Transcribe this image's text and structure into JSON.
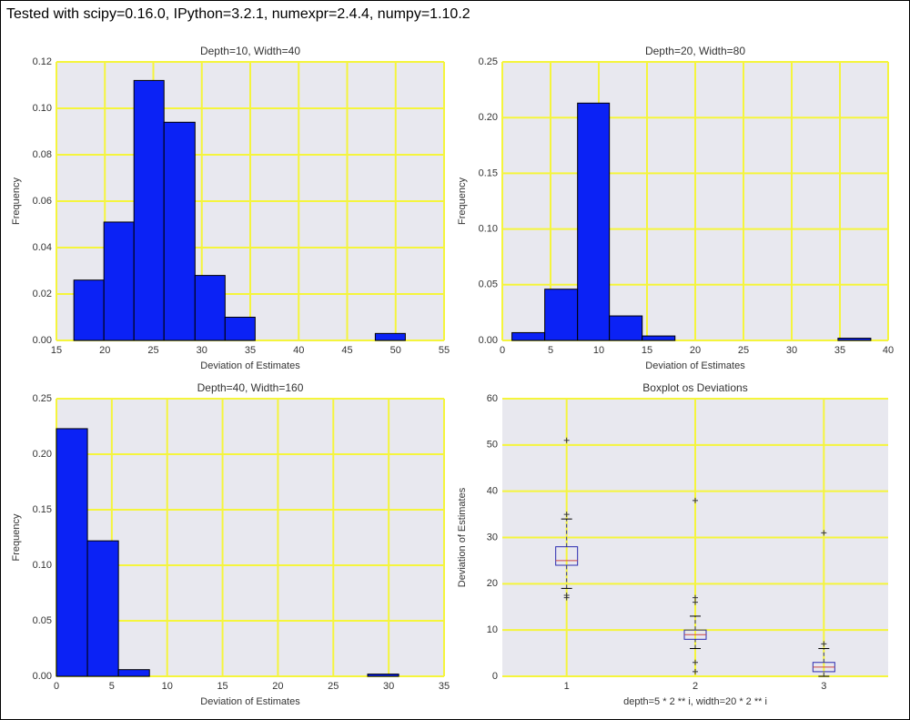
{
  "header": "Tested with scipy=0.16.0, IPython=3.2.1, numexpr=2.4.4, numpy=1.10.2",
  "chart_data": [
    {
      "type": "histogram",
      "title": "Depth=10, Width=40",
      "x_label": "Deviation of Estimates",
      "y_label": "Frequency",
      "bins": [
        16.8,
        19.9,
        23.0,
        26.1,
        29.3,
        32.4,
        35.5,
        38.6,
        41.7,
        44.8,
        47.9,
        51.0
      ],
      "values": [
        0.026,
        0.051,
        0.112,
        0.094,
        0.028,
        0.01,
        0,
        0,
        0,
        0,
        0.003
      ],
      "color": "#0b22f5",
      "grid": true,
      "xlim": [
        15,
        55
      ],
      "xticks": [
        15,
        20,
        25,
        30,
        35,
        40,
        45,
        50,
        55
      ],
      "ylim": [
        0,
        0.12
      ],
      "yticks": [
        {
          "value": 0,
          "label": "0.00"
        },
        {
          "value": 0.02,
          "label": "0.02"
        },
        {
          "value": 0.04,
          "label": "0.04"
        },
        {
          "value": 0.06,
          "label": "0.06"
        },
        {
          "value": 0.08,
          "label": "0.08"
        },
        {
          "value": 0.1,
          "label": "0.10"
        },
        {
          "value": 0.12,
          "label": "0.12"
        }
      ]
    },
    {
      "type": "histogram",
      "title": "Depth=20, Width=80",
      "x_label": "Deviation of Estimates",
      "y_label": "Frequency",
      "bins": [
        1.0,
        4.4,
        7.8,
        11.1,
        14.5,
        17.9,
        21.3,
        24.7,
        28.1,
        31.4,
        34.8,
        38.2
      ],
      "values": [
        0.007,
        0.046,
        0.213,
        0.022,
        0.004,
        0,
        0,
        0,
        0,
        0,
        0.002
      ],
      "color": "#0b22f5",
      "grid": true,
      "xlim": [
        0,
        40
      ],
      "xticks": [
        0,
        5,
        10,
        15,
        20,
        25,
        30,
        35,
        40
      ],
      "ylim": [
        0,
        0.25
      ],
      "yticks": [
        {
          "value": 0,
          "label": "0.00"
        },
        {
          "value": 0.05,
          "label": "0.05"
        },
        {
          "value": 0.1,
          "label": "0.10"
        },
        {
          "value": 0.15,
          "label": "0.15"
        },
        {
          "value": 0.2,
          "label": "0.20"
        },
        {
          "value": 0.25,
          "label": "0.25"
        }
      ]
    },
    {
      "type": "histogram",
      "title": "Depth=40, Width=160",
      "x_label": "Deviation of Estimates",
      "y_label": "Frequency",
      "bins": [
        0,
        2.8,
        5.6,
        8.4,
        11.2,
        14.0,
        16.9,
        19.7,
        22.5,
        25.3,
        28.1,
        30.9
      ],
      "values": [
        0.223,
        0.122,
        0.006,
        0,
        0,
        0,
        0,
        0,
        0,
        0,
        0.002
      ],
      "color": "#0b22f5",
      "grid": true,
      "xlim": [
        0,
        35
      ],
      "xticks": [
        0,
        5,
        10,
        15,
        20,
        25,
        30,
        35
      ],
      "ylim": [
        0,
        0.25
      ],
      "yticks": [
        {
          "value": 0,
          "label": "0.00"
        },
        {
          "value": 0.05,
          "label": "0.05"
        },
        {
          "value": 0.1,
          "label": "0.10"
        },
        {
          "value": 0.15,
          "label": "0.15"
        },
        {
          "value": 0.2,
          "label": "0.20"
        },
        {
          "value": 0.25,
          "label": "0.25"
        }
      ]
    },
    {
      "type": "box",
      "title": "Boxplot os Deviations",
      "x_label": "depth=5 * 2 ** i, width=20 * 2 ** i",
      "y_label": "Deviation of Estimates",
      "categories": [
        "1",
        "2",
        "3"
      ],
      "color": "#2b2bb0",
      "grid": true,
      "boxes": [
        {
          "whislo": 19,
          "q1": 24,
          "med": 25,
          "q3": 28,
          "whishi": 34,
          "fliers": [
            17,
            17.5,
            35,
            51
          ]
        },
        {
          "whislo": 6,
          "q1": 8,
          "med": 9,
          "q3": 10,
          "whishi": 13,
          "fliers": [
            1,
            3,
            16,
            17,
            38
          ]
        },
        {
          "whislo": 0,
          "q1": 1,
          "med": 2,
          "q3": 3,
          "whishi": 6,
          "fliers": [
            7,
            31
          ]
        }
      ],
      "ylim": [
        0,
        60
      ],
      "yticks": [
        0,
        10,
        20,
        30,
        40,
        50,
        60
      ]
    }
  ]
}
